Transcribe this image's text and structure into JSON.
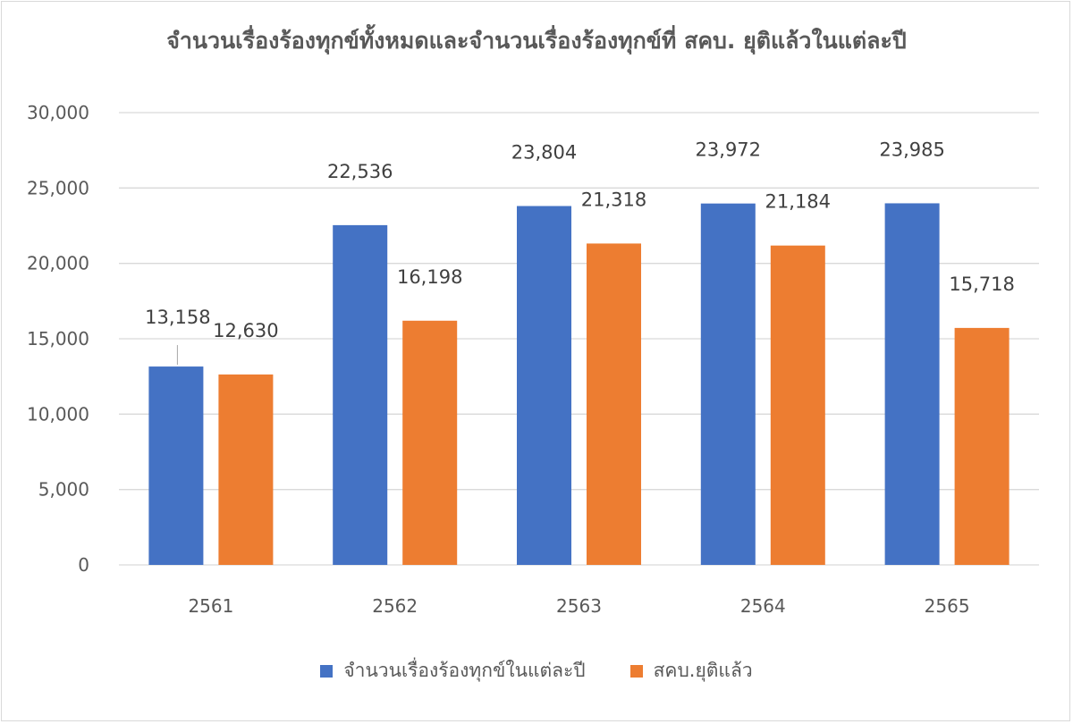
{
  "chart_data": {
    "type": "bar",
    "title": "จำนวนเรื่องร้องทุกข์ทั้งหมดและจำนวนเรื่องร้องทุกข์ที่ สคบ. ยุติแล้วในแต่ละปี",
    "xlabel": "",
    "ylabel": "",
    "categories": [
      "2561",
      "2562",
      "2563",
      "2564",
      "2565"
    ],
    "series": [
      {
        "name": "จำนวนเรื่องร้องทุกข์ในแต่ละปี",
        "values": [
          13158,
          22536,
          23804,
          23972,
          23985
        ],
        "labels": [
          "13,158",
          "22,536",
          "23,804",
          "23,972",
          "23,985"
        ],
        "color": "#4472C4"
      },
      {
        "name": "สคบ.ยุติแล้ว",
        "values": [
          12630,
          16198,
          21318,
          21184,
          15718
        ],
        "labels": [
          "12,630",
          "16,198",
          "21,318",
          "21,184",
          "15,718"
        ],
        "color": "#ED7D31"
      }
    ],
    "ylim": [
      0,
      30000
    ],
    "yticks": [
      0,
      5000,
      10000,
      15000,
      20000,
      25000,
      30000
    ],
    "ytick_labels": [
      "0",
      "5,000",
      "10,000",
      "15,000",
      "20,000",
      "25,000",
      "30,000"
    ],
    "grid": true,
    "legend_position": "bottom"
  }
}
